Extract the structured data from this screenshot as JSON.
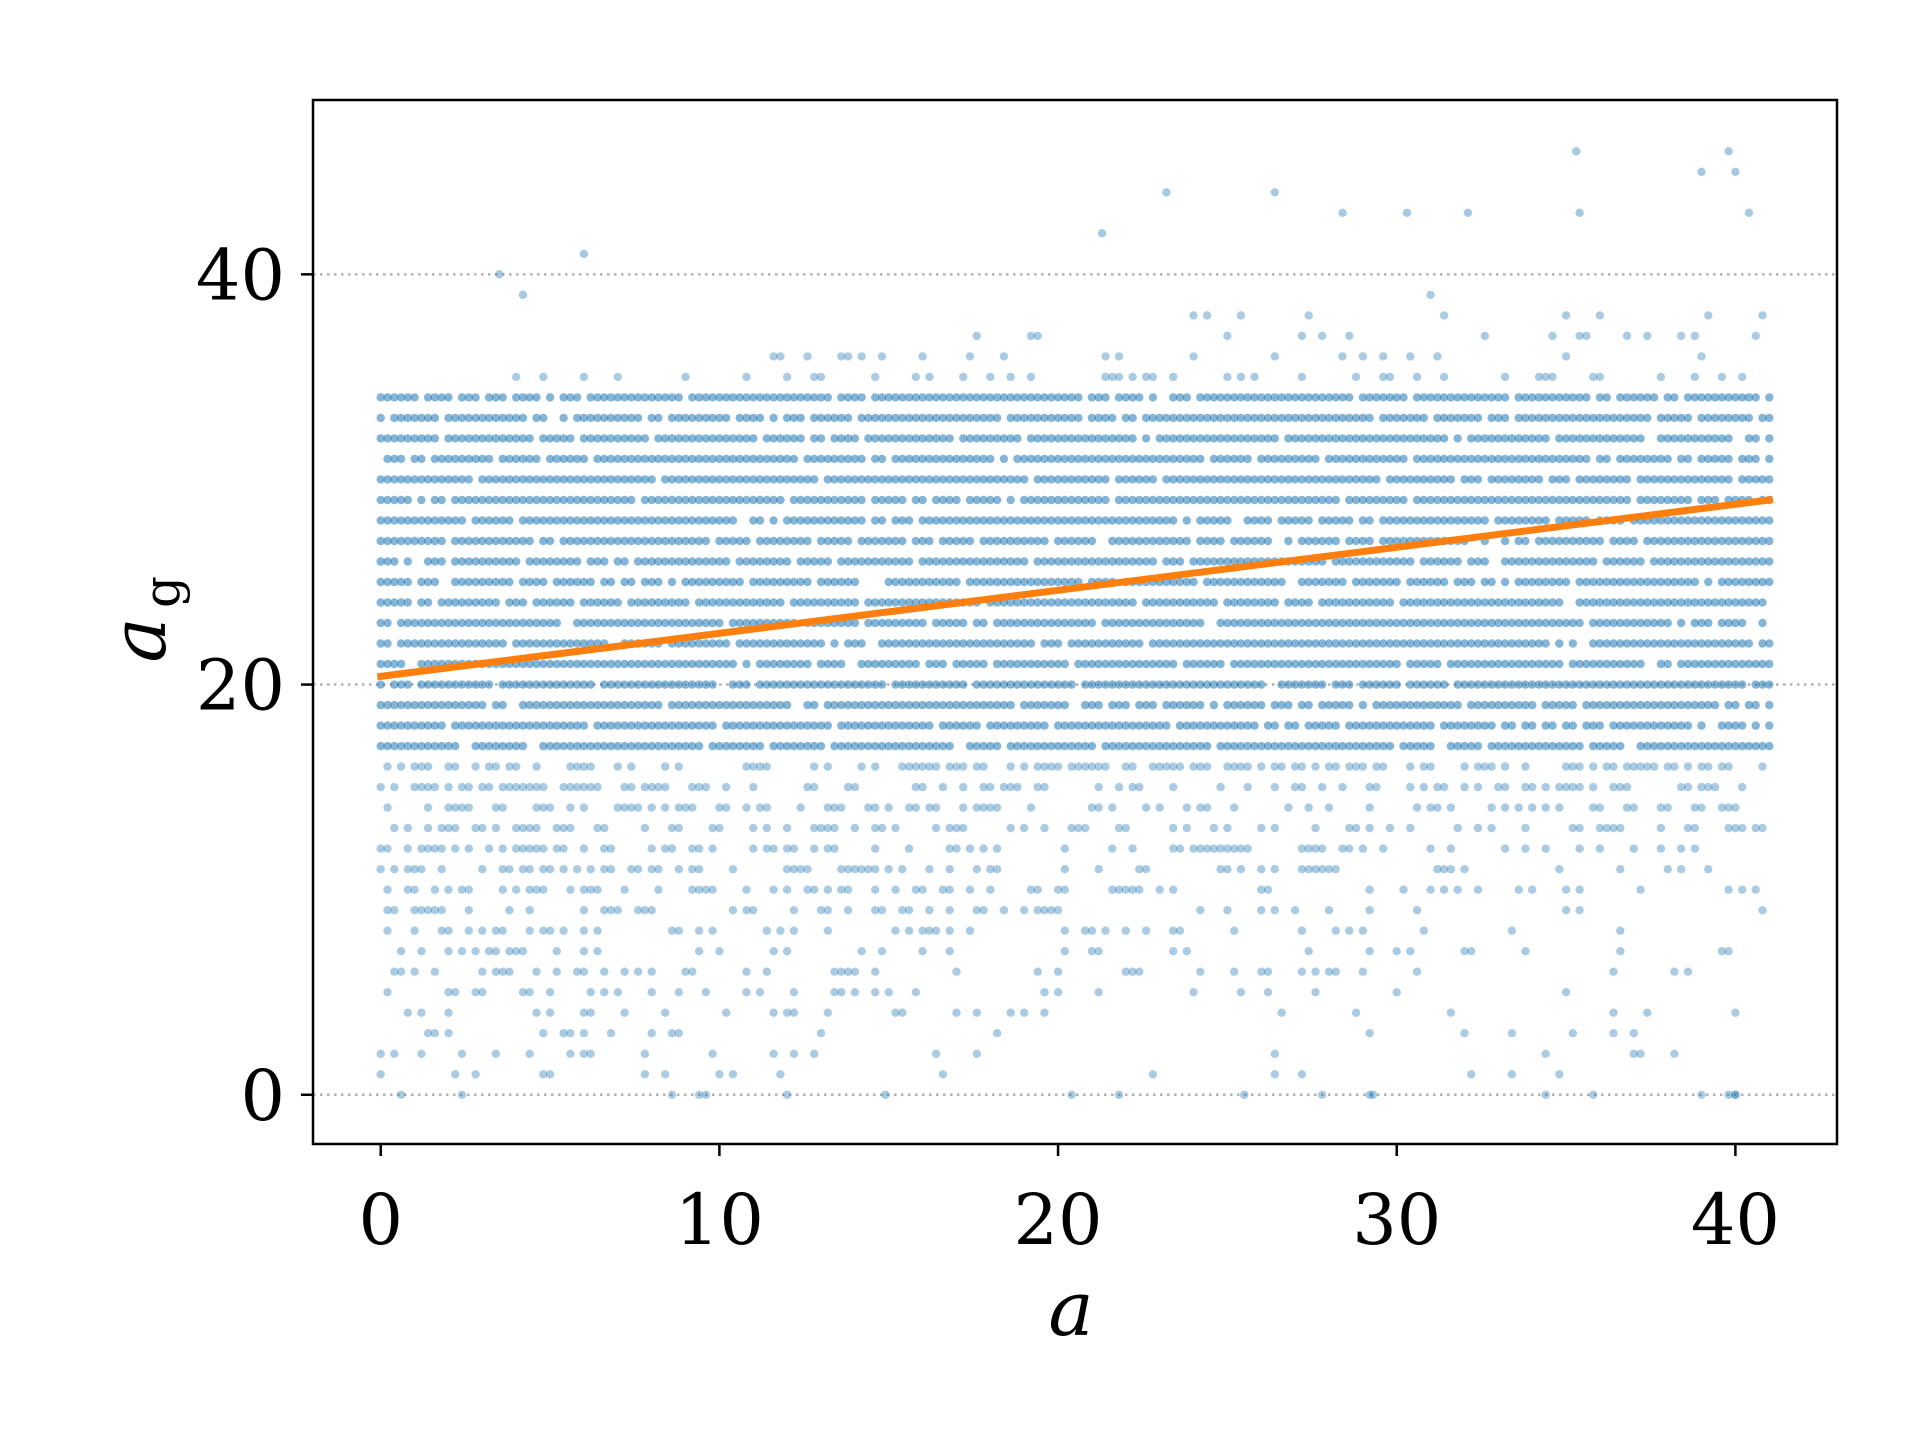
{
  "chart_data": {
    "type": "scatter",
    "title": "",
    "xlabel": "a",
    "ylabel": "a",
    "ylabel_subscript": "g",
    "xlim": [
      -2,
      43
    ],
    "ylim": [
      -2.4,
      48.5
    ],
    "x_ticks": [
      0,
      10,
      20,
      30,
      40
    ],
    "y_ticks": [
      0,
      20,
      40
    ],
    "x_tick_labels": [
      "0",
      "10",
      "20",
      "30",
      "40"
    ],
    "y_tick_labels": [
      "0",
      "20",
      "40"
    ],
    "grid": "horizontal dotted at y ticks",
    "legend": "none",
    "x_domain": [
      0,
      41
    ],
    "x_step": 0.2,
    "y_values_discrete": [
      0,
      1,
      2,
      3,
      4,
      5,
      6,
      7,
      8,
      9,
      10,
      11,
      12,
      13,
      14,
      15,
      16,
      17,
      18,
      19,
      20,
      21,
      22,
      23,
      24,
      25,
      26,
      27,
      28,
      29,
      30,
      31,
      32,
      33,
      34,
      35,
      36,
      37,
      38,
      39,
      40,
      41,
      42,
      43,
      44,
      45,
      46
    ],
    "density_note": "points dense between y=17 and y=34 across all x; sparse low values; upper bound rises from about 34 at x=0 to about 40 at x=41",
    "outliers": [
      {
        "x": 3.5,
        "y": 40
      },
      {
        "x": 4.2,
        "y": 39
      },
      {
        "x": 6.0,
        "y": 41
      },
      {
        "x": 21.3,
        "y": 42
      },
      {
        "x": 23.2,
        "y": 44
      },
      {
        "x": 26.4,
        "y": 44
      },
      {
        "x": 28.4,
        "y": 43
      },
      {
        "x": 30.3,
        "y": 43
      },
      {
        "x": 32.1,
        "y": 43
      },
      {
        "x": 35.3,
        "y": 46
      },
      {
        "x": 35.4,
        "y": 43
      },
      {
        "x": 39.0,
        "y": 45
      },
      {
        "x": 39.8,
        "y": 46
      },
      {
        "x": 40.0,
        "y": 45
      },
      {
        "x": 40.4,
        "y": 43
      },
      {
        "x": 29.3,
        "y": 0
      },
      {
        "x": 25.5,
        "y": 0
      },
      {
        "x": 21.8,
        "y": 0
      },
      {
        "x": 40.0,
        "y": 0
      },
      {
        "x": 39.8,
        "y": 0
      },
      {
        "x": 14.9,
        "y": 0
      }
    ],
    "series": [
      {
        "type": "scatter",
        "color": "#1f77b4"
      },
      {
        "type": "line",
        "x": [
          0,
          41
        ],
        "y": [
          20.4,
          29.0
        ],
        "color": "#ff7f0e"
      }
    ]
  }
}
